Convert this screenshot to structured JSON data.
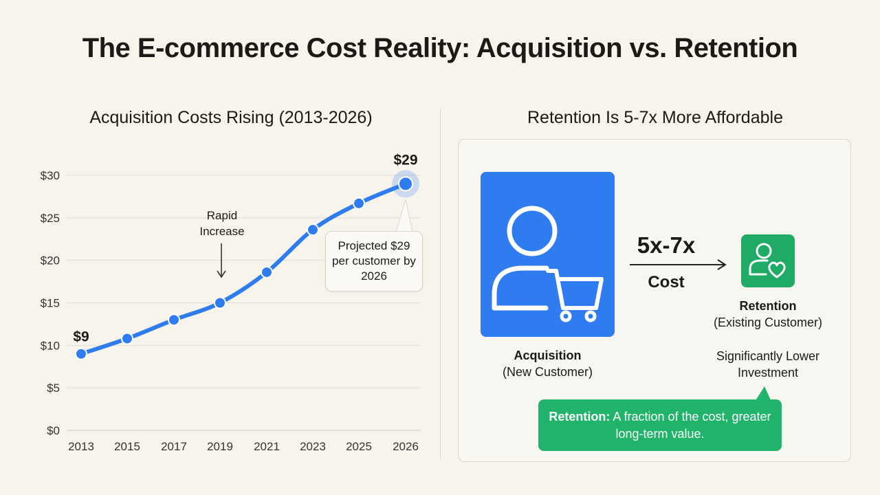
{
  "page": {
    "title": "The E-commerce Cost Reality: Acquisition vs. Retention"
  },
  "left": {
    "heading": "Acquisition Costs Rising (2013-2026)",
    "annotation": "Rapid\nIncrease",
    "callout": "Projected $29 per customer by 2026"
  },
  "right": {
    "heading": "Retention Is 5-7x More Affordable",
    "acquisition_label": "Acquisition",
    "acquisition_sub": "(New Customer)",
    "ratio": "5x-7x",
    "cost_label": "Cost",
    "retention_label": "Retention",
    "retention_sub": "(Existing Customer)",
    "investment_note_line1": "Significantly Lower",
    "investment_note_line2": "Investment",
    "summary_bold": "Retention:",
    "summary_text": " A fraction of the cost, greater long-term value.",
    "colors": {
      "acquisition": "#2f7cf0",
      "retention": "#1faa66",
      "summary": "#20b36a"
    },
    "icons": [
      "user-cart-icon",
      "user-heart-icon",
      "arrow-right-icon"
    ]
  },
  "chart_data": {
    "type": "line",
    "x": [
      "2013",
      "2015",
      "2017",
      "2019",
      "2021",
      "2023",
      "2025",
      "2026"
    ],
    "series": [
      {
        "values": [
          9,
          10.8,
          13,
          15,
          18.6,
          23.6,
          26.7,
          29
        ]
      }
    ],
    "ylim": [
      0,
      30
    ],
    "yticks": [
      0,
      5,
      10,
      15,
      20,
      25,
      30
    ],
    "ytick_labels": [
      "$0",
      "$5",
      "$10",
      "$15",
      "$20",
      "$25",
      "$30"
    ],
    "data_labels": [
      {
        "index": 0,
        "text": "$9"
      },
      {
        "index": 7,
        "text": "$29"
      }
    ],
    "grid": true,
    "legend": "none",
    "color": "#2f7cf0",
    "xlabel": "",
    "ylabel": ""
  }
}
